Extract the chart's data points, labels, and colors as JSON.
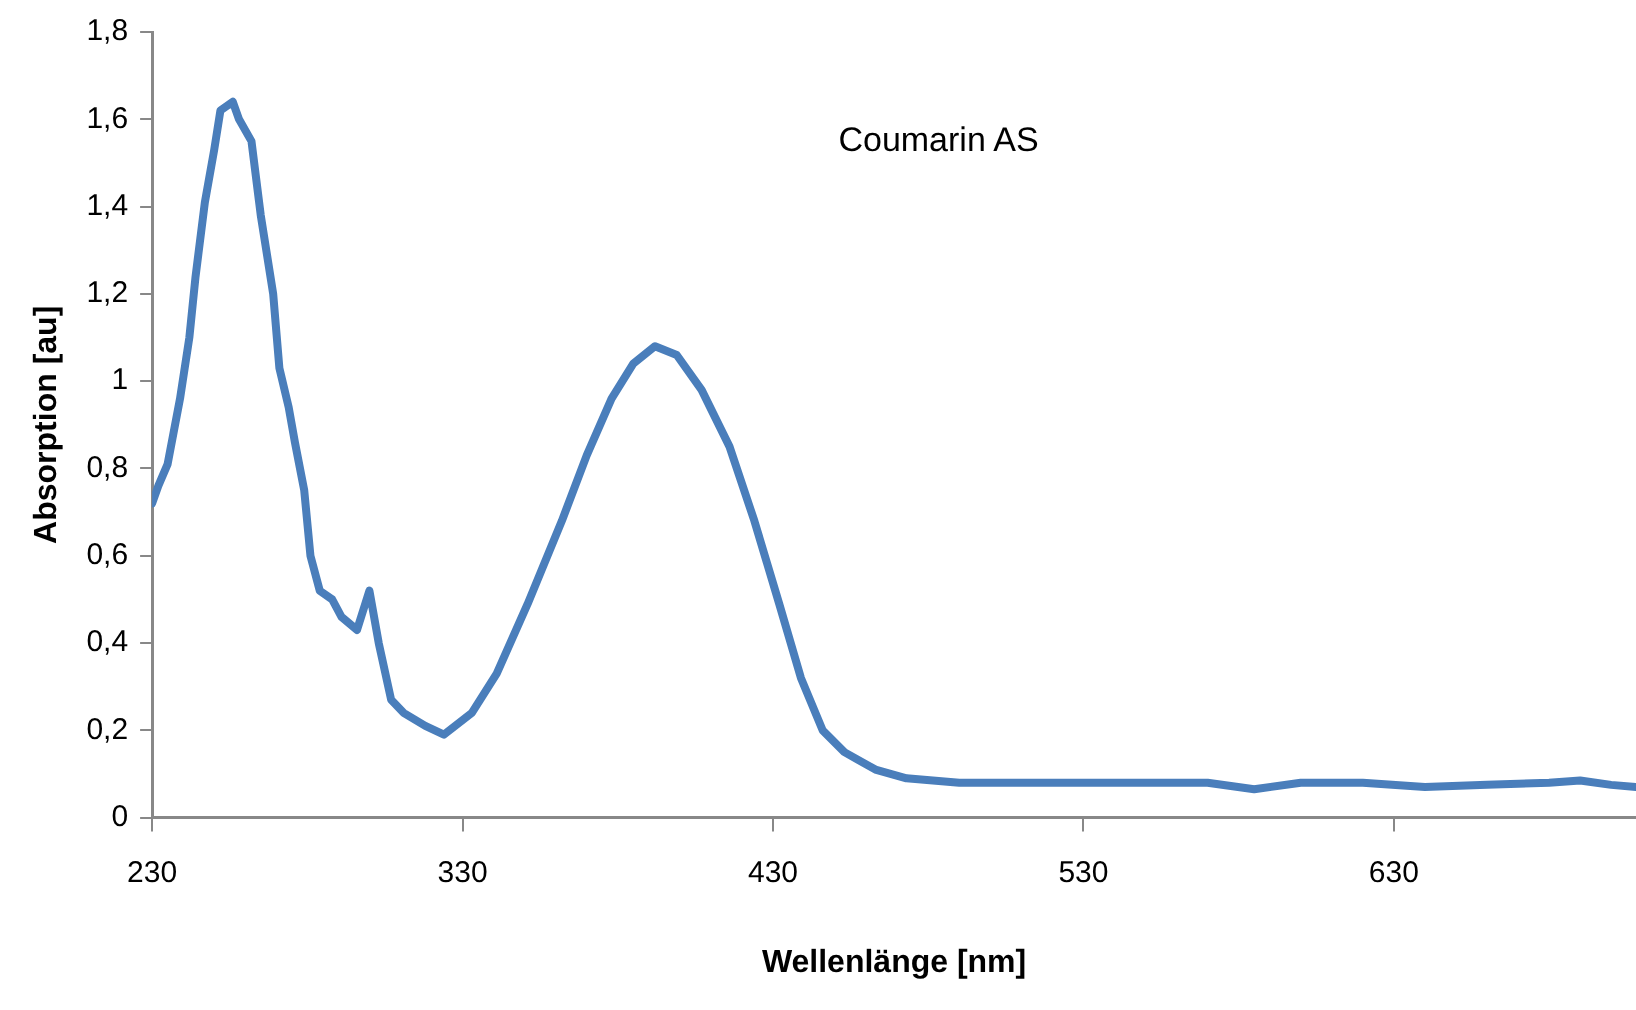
{
  "chart_data": {
    "type": "line",
    "title": "Coumarin AS",
    "xlabel": "Wellenlänge [nm]",
    "ylabel": "Absorption [au]",
    "x": [
      230,
      232,
      235,
      239,
      242,
      244,
      247,
      250,
      252,
      256,
      258,
      262,
      265,
      269,
      271,
      274,
      276,
      279,
      281,
      284,
      288,
      291,
      296,
      300,
      303,
      307,
      311,
      318,
      324,
      333,
      341,
      351,
      362,
      370,
      378,
      385,
      392,
      399,
      407,
      416,
      424,
      432,
      439,
      446,
      453,
      463,
      473,
      490,
      510,
      530,
      550,
      570,
      585,
      600,
      620,
      640,
      660,
      680,
      690,
      700,
      708
    ],
    "series": [
      {
        "color": "#4a7ebb",
        "values": [
          0.72,
          0.76,
          0.81,
          0.96,
          1.1,
          1.24,
          1.41,
          1.53,
          1.62,
          1.64,
          1.6,
          1.55,
          1.38,
          1.2,
          1.03,
          0.94,
          0.86,
          0.75,
          0.6,
          0.52,
          0.5,
          0.46,
          0.43,
          0.52,
          0.4,
          0.27,
          0.24,
          0.21,
          0.19,
          0.24,
          0.33,
          0.49,
          0.68,
          0.83,
          0.96,
          1.04,
          1.08,
          1.06,
          0.98,
          0.85,
          0.68,
          0.49,
          0.32,
          0.2,
          0.15,
          0.11,
          0.09,
          0.08,
          0.08,
          0.08,
          0.08,
          0.08,
          0.065,
          0.08,
          0.08,
          0.07,
          0.075,
          0.08,
          0.085,
          0.075,
          0.07
        ]
      }
    ],
    "xlim": [
      230,
      708
    ],
    "xticks": [
      230,
      330,
      430,
      530,
      630
    ],
    "ylim": [
      0,
      1.8
    ],
    "yticks": [
      0,
      {
        "value": 0.2,
        "label": "0,2"
      },
      {
        "value": 0.4,
        "label": "0,4"
      },
      {
        "value": 0.6,
        "label": "0,6"
      },
      {
        "value": 0.8,
        "label": "0,8"
      },
      1,
      {
        "value": 1.2,
        "label": "1,2"
      },
      {
        "value": 1.4,
        "label": "1,4"
      },
      {
        "value": 1.6,
        "label": "1,6"
      },
      {
        "value": 1.8,
        "label": "1,8"
      }
    ],
    "grid": false,
    "legend": false,
    "marker": "none",
    "line_style": "solid"
  }
}
